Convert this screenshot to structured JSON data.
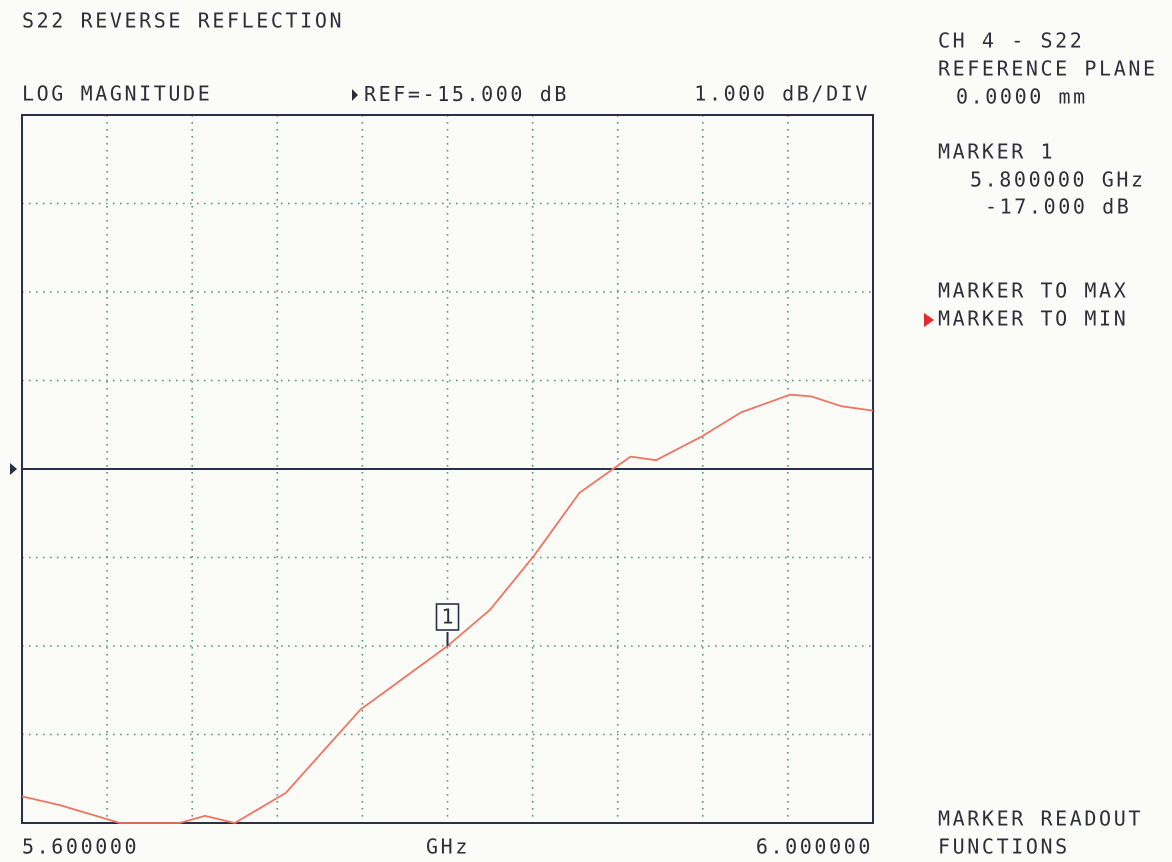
{
  "chart_data": {
    "type": "line",
    "title": "S22 REVERSE REFLECTION",
    "format": "LOG MAGNITUDE",
    "ref_prefix": "REF=",
    "ref": {
      "value": -15,
      "label": "-15.000 dB"
    },
    "scale": "1.000 dB/DIV",
    "xlabel": "GHz",
    "x": [
      5.6,
      5.618,
      5.646,
      5.674,
      5.686,
      5.7,
      5.724,
      5.759,
      5.8,
      5.82,
      5.841,
      5.862,
      5.886,
      5.898,
      5.919,
      5.938,
      5.961,
      5.971,
      5.985,
      6.0
    ],
    "values": [
      -18.7,
      -18.8,
      -19.0,
      -19.0,
      -18.92,
      -19.0,
      -18.66,
      -17.72,
      -17.0,
      -16.59,
      -15.97,
      -15.27,
      -14.86,
      -14.9,
      -14.64,
      -14.36,
      -14.16,
      -14.18,
      -14.29,
      -14.34
    ],
    "color": "#f07462",
    "xlim": [
      5.6,
      6.0
    ],
    "ylim": [
      -19,
      -11
    ],
    "xticks": [
      {
        "value": 5.6,
        "label": "5.600000"
      },
      {
        "value": 6.0,
        "label": "6.000000"
      }
    ],
    "xgrid": [
      5.64,
      5.68,
      5.72,
      5.76,
      5.8,
      5.84,
      5.88,
      5.92,
      5.96
    ],
    "ygrid": [
      -18,
      -17,
      -16,
      -14,
      -13,
      -12
    ],
    "grid": true,
    "marker": {
      "title": "MARKER 1",
      "id": "1",
      "x": {
        "value": 5.8,
        "label": "5.800000 GHz"
      },
      "y": {
        "value": -17,
        "label": "-17.000 dB"
      }
    }
  },
  "side_panel": {
    "channel": "CH 4 - S22",
    "ref_plane_title": "REFERENCE PLANE",
    "ref_plane": "0.0000 mm",
    "menu": [
      {
        "label": "MARKER TO MAX",
        "selected": false
      },
      {
        "label": "MARKER TO MIN",
        "selected": true
      }
    ],
    "menu_title": [
      "MARKER READOUT",
      "FUNCTIONS"
    ]
  }
}
